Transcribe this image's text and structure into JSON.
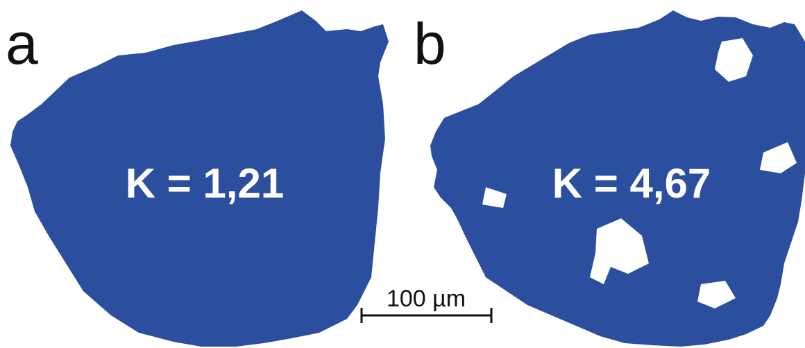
{
  "panels": [
    {
      "label": "a",
      "text": "K = 1,21"
    },
    {
      "label": "b",
      "text": "K = 4,67"
    }
  ],
  "scale_bar": "100 µm"
}
